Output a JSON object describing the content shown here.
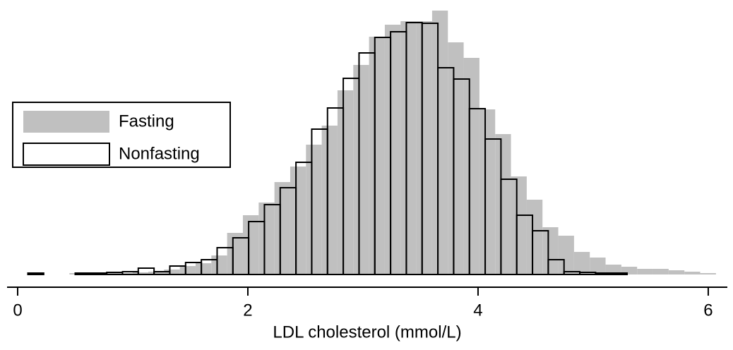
{
  "chart_data": {
    "type": "histogram",
    "x_label": "LDL cholesterol (mmol/L)",
    "xlim": [
      -0.092,
      6.166
    ],
    "xticks": [
      0,
      2,
      4,
      6
    ],
    "ylim": [
      0,
      380
    ],
    "legend": "left",
    "series": [
      {
        "name": "Fasting",
        "color": "#c0c0c0",
        "filled": true,
        "bins": [
          0.45,
          0.587,
          0.724,
          0.861,
          0.998,
          1.135,
          1.272,
          1.409,
          1.546,
          1.683,
          1.82,
          1.957,
          2.094,
          2.231,
          2.368,
          2.505,
          2.642,
          2.779,
          2.916,
          3.053,
          3.19,
          3.327,
          3.464,
          3.601,
          3.738,
          3.875,
          4.012,
          4.149,
          4.286,
          4.423,
          4.56,
          4.697,
          4.834,
          4.971,
          5.108,
          5.245,
          5.382,
          5.519,
          5.656,
          5.793,
          5.93,
          6.067
        ],
        "values": [
          2,
          1,
          2,
          2,
          3,
          4,
          7,
          12,
          16,
          27,
          59,
          84,
          102,
          131,
          153,
          184,
          211,
          261,
          297,
          337,
          354,
          359,
          359,
          374,
          329,
          307,
          234,
          199,
          139,
          106,
          67,
          55,
          32,
          24,
          14,
          11,
          8,
          8,
          6,
          4,
          2
        ]
      },
      {
        "name": "Nonfasting",
        "color": "#000000",
        "filled": false,
        "bins": [
          0.089,
          0.226,
          0.363,
          0.5,
          0.637,
          0.774,
          0.911,
          1.048,
          1.185,
          1.322,
          1.459,
          1.596,
          1.733,
          1.87,
          2.007,
          2.144,
          2.281,
          2.418,
          2.555,
          2.692,
          2.829,
          2.966,
          3.103,
          3.24,
          3.377,
          3.514,
          3.651,
          3.788,
          3.925,
          4.062,
          4.199,
          4.336,
          4.473,
          4.61,
          4.747,
          4.884,
          5.021,
          5.158,
          5.295
        ],
        "values": [
          2,
          0,
          0,
          2,
          2,
          3,
          4,
          9,
          4,
          12,
          17,
          21,
          38,
          52,
          75,
          99,
          123,
          159,
          206,
          236,
          278,
          314,
          336,
          344,
          357,
          356,
          293,
          277,
          235,
          192,
          135,
          84,
          62,
          21,
          4,
          3,
          2,
          2
        ]
      }
    ]
  }
}
